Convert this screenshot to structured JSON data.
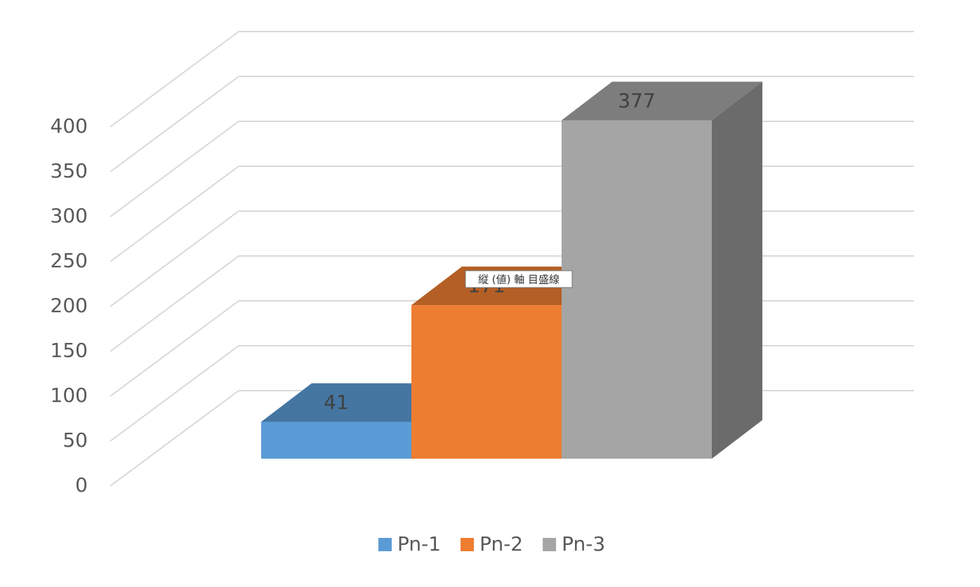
{
  "chart_data": {
    "type": "bar3d",
    "series": [
      {
        "name": "Pn-1",
        "color": "#5b9bd5",
        "values": [
          41
        ]
      },
      {
        "name": "Pn-2",
        "color": "#ed7d31",
        "values": [
          171
        ]
      },
      {
        "name": "Pn-3",
        "color": "#a5a5a5",
        "values": [
          377
        ]
      }
    ],
    "ylim": [
      0,
      400
    ],
    "yticks": [
      0,
      50,
      100,
      150,
      200,
      250,
      300,
      350,
      400
    ],
    "grid": true,
    "legend": "bottom"
  },
  "tooltip": "縦 (値) 軸 目盛線"
}
